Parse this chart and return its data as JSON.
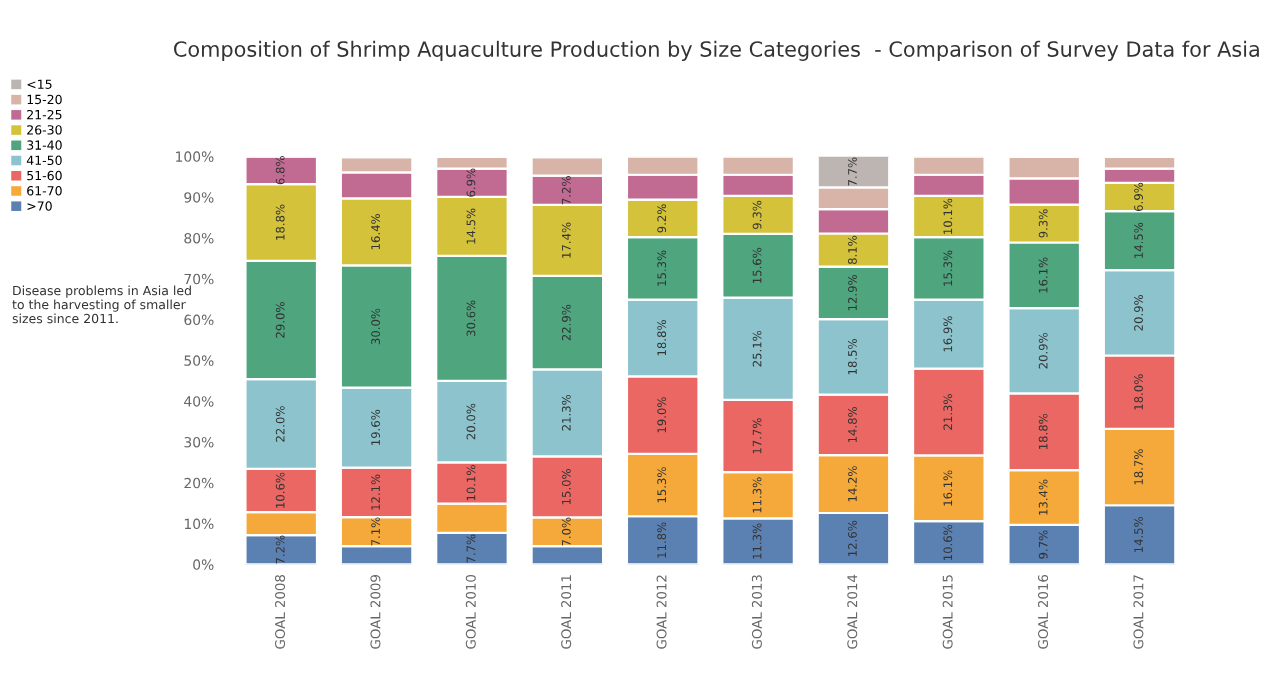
{
  "chart_data": {
    "type": "bar",
    "stacked": true,
    "title": "Composition of Shrimp Aquaculture Production by Size Categories  - Comparison of Survey Data for Asia",
    "categories": [
      "GOAL 2008",
      "GOAL 2009",
      "GOAL 2010",
      "GOAL 2011",
      "GOAL 2012",
      "GOAL 2013",
      "GOAL 2014",
      "GOAL 2015",
      "GOAL 2016",
      "GOAL 2017"
    ],
    "series": [
      {
        "name": ">70",
        "color": "#5b80b2",
        "values": [
          7.2,
          4.5,
          7.7,
          4.5,
          11.8,
          11.3,
          12.6,
          10.6,
          9.7,
          14.5
        ],
        "value_labels": [
          "7.2%",
          null,
          "7.7%",
          null,
          "11.8%",
          "11.3%",
          "12.6%",
          "10.6%",
          "9.7%",
          "14.5%"
        ]
      },
      {
        "name": "61-70",
        "color": "#f5a93a",
        "values": [
          5.6,
          7.1,
          7.2,
          7.0,
          15.3,
          11.3,
          14.2,
          16.1,
          13.4,
          18.7
        ],
        "value_labels": [
          null,
          "7.1%",
          null,
          "7.0%",
          "15.3%",
          "11.3%",
          "14.2%",
          "16.1%",
          "13.4%",
          "18.7%"
        ]
      },
      {
        "name": "51-60",
        "color": "#ea6763",
        "values": [
          10.6,
          12.1,
          10.1,
          15.0,
          19.0,
          17.7,
          14.8,
          21.3,
          18.8,
          18.0
        ],
        "value_labels": [
          "10.6%",
          "12.1%",
          "10.1%",
          "15.0%",
          "19.0%",
          "17.7%",
          "14.8%",
          "21.3%",
          "18.8%",
          "18.0%"
        ]
      },
      {
        "name": "41-50",
        "color": "#8cc3cc",
        "values": [
          22.0,
          19.6,
          20.0,
          21.3,
          18.8,
          25.1,
          18.5,
          16.9,
          20.9,
          20.9
        ],
        "value_labels": [
          "22.0%",
          "19.6%",
          "20.0%",
          "21.3%",
          "18.8%",
          "25.1%",
          "18.5%",
          "16.9%",
          "20.9%",
          "20.9%"
        ]
      },
      {
        "name": "31-40",
        "color": "#4ea57e",
        "values": [
          29.0,
          30.0,
          30.6,
          22.9,
          15.3,
          15.6,
          12.9,
          15.3,
          16.1,
          14.5
        ],
        "value_labels": [
          "29.0%",
          "30.0%",
          "30.6%",
          "22.9%",
          "15.3%",
          "15.6%",
          "12.9%",
          "15.3%",
          "16.1%",
          "14.5%"
        ]
      },
      {
        "name": "26-30",
        "color": "#d4c23b",
        "values": [
          18.8,
          16.4,
          14.5,
          17.4,
          9.2,
          9.3,
          8.1,
          10.1,
          9.3,
          6.9
        ],
        "value_labels": [
          "18.8%",
          "16.4%",
          "14.5%",
          "17.4%",
          "9.2%",
          "9.3%",
          "8.1%",
          "10.1%",
          "9.3%",
          "6.9%"
        ]
      },
      {
        "name": "21-25",
        "color": "#c16b93",
        "values": [
          6.8,
          6.4,
          6.9,
          7.2,
          6.1,
          5.2,
          6.0,
          5.2,
          6.4,
          3.5
        ],
        "value_labels": [
          "6.8%",
          null,
          "6.9%",
          "7.2%",
          null,
          null,
          null,
          null,
          null,
          null
        ]
      },
      {
        "name": "15-20",
        "color": "#d7b3a8",
        "values": [
          null,
          3.7,
          2.9,
          4.5,
          4.5,
          4.5,
          5.3,
          4.5,
          5.3,
          2.9
        ]
      },
      {
        "name": "<15",
        "color": "#bdb5b2",
        "values": [
          null,
          null,
          null,
          null,
          null,
          null,
          7.7,
          null,
          null,
          null
        ],
        "value_labels": [
          null,
          null,
          null,
          null,
          null,
          null,
          "7.7%",
          null,
          null,
          null
        ]
      }
    ],
    "ylim": [
      0,
      100
    ],
    "yticks": [
      {
        "value": 0,
        "label": "0%"
      },
      {
        "value": 10,
        "label": "10%"
      },
      {
        "value": 20,
        "label": "20%"
      },
      {
        "value": 30,
        "label": "30%"
      },
      {
        "value": 40,
        "label": "40%"
      },
      {
        "value": 50,
        "label": "50%"
      },
      {
        "value": 60,
        "label": "60%"
      },
      {
        "value": 70,
        "label": "70%"
      },
      {
        "value": 80,
        "label": "80%"
      },
      {
        "value": 90,
        "label": "90%"
      },
      {
        "value": 100,
        "label": "100%"
      }
    ],
    "grid": false,
    "legend": "top left",
    "annotations": [
      "Disease problems in Asia led to the harvesting of smaller sizes since 2011."
    ]
  }
}
